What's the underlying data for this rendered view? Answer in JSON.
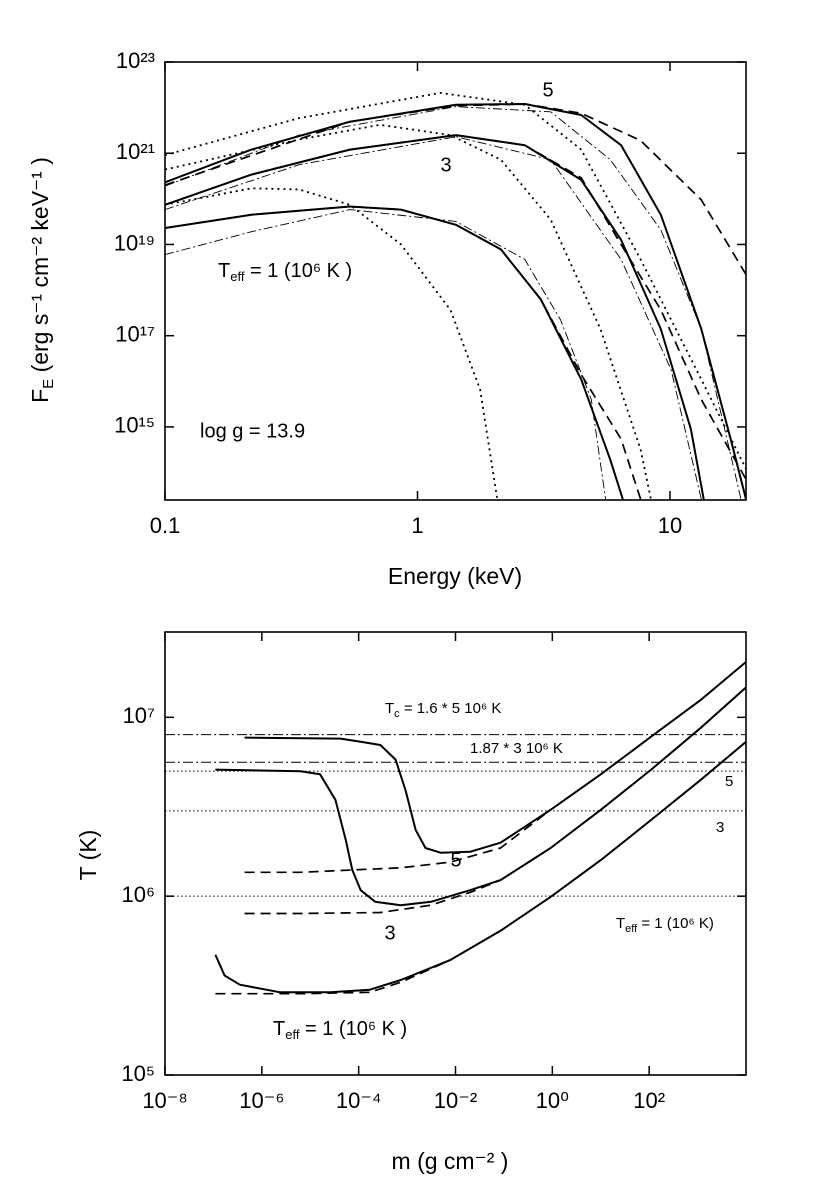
{
  "chart_data": [
    {
      "type": "line",
      "xlog": true,
      "ylog": true,
      "x_label": "Energy (keV)",
      "y_label": [
        "F",
        "E",
        "  (erg s⁻¹ cm⁻² keV⁻¹ )"
      ],
      "annotations": [
        "5",
        "3",
        [
          "T",
          "eff",
          " = 1 (10⁶ K )"
        ],
        "log g = 13.9"
      ],
      "xlim": [
        0.1,
        20
      ],
      "xticks": [
        0.1,
        1,
        10
      ],
      "ylim": [
        25000000000000.0,
        1e+23
      ],
      "yticks": [
        {
          "value": 1000000000000000.0,
          "label": "10¹⁵"
        },
        {
          "value": 1e+17,
          "label": "10¹⁷"
        },
        {
          "value": 1e+19,
          "label": "10¹⁹"
        },
        {
          "value": 1e+21,
          "label": "10²¹"
        },
        {
          "value": 1e+23,
          "label": "10²³"
        }
      ],
      "color": "#000000",
      "series": [
        {
          "style": "solid",
          "x": [
            0.1,
            0.22,
            0.54,
            1.42,
            2.66,
            4.45,
            6.4,
            9.2,
            13.3,
            17.4,
            20
          ],
          "values": [
            2.3e+20,
            1.2e+21,
            4.9e+21,
            1.15e+22,
            1.2e+22,
            6.9e+21,
            1.5e+21,
            4.5e+19,
            1.4e+17,
            540000000000000.0,
            26000000000000.0
          ]
        },
        {
          "style": "dashed",
          "x": [
            0.1,
            0.54,
            1.42,
            2.66,
            4.45,
            7.65,
            13.3,
            20
          ],
          "values": [
            2e+20,
            4.9e+21,
            1.1e+22,
            1.2e+22,
            7.5e+21,
            1.9e+21,
            9.5e+19,
            2.2e+18
          ]
        },
        {
          "style": "dotted",
          "x": [
            0.1,
            0.34,
            1.23,
            2.66,
            4.45,
            7.65,
            13.3,
            20
          ],
          "values": [
            9.1e+20,
            5.9e+21,
            2.1e+22,
            1.15e+22,
            1.2e+21,
            4.7e+18,
            1.1e+16,
            120000000000000.0
          ]
        },
        {
          "style": "dashdot",
          "x": [
            0.1,
            0.34,
            1.42,
            3.37,
            5.8,
            9.2,
            13.3,
            19.1
          ],
          "values": [
            1.9e+20,
            2.5e+21,
            1.05e+22,
            8.1e+21,
            7.2e+20,
            2.1e+19,
            1.4e+17,
            26000000000000.0
          ]
        },
        {
          "style": "solid",
          "x": [
            0.1,
            0.22,
            0.54,
            1.42,
            2.66,
            4.45,
            6.4,
            9.2,
            12.1,
            13.6
          ],
          "values": [
            7.4e+19,
            3.4e+20,
            1.2e+21,
            2.5e+21,
            1.5e+21,
            2.6e+20,
            1.26e+19,
            1.4e+17,
            890000000000000.0,
            26000000000000.0
          ]
        },
        {
          "style": "dashed",
          "x": [
            0.1,
            0.22,
            0.54,
            1.42,
            2.66,
            4.45,
            6.4,
            9.2,
            13.3,
            20
          ],
          "values": [
            7.4e+19,
            3.4e+20,
            1.2e+21,
            2.5e+21,
            1.5e+21,
            2.9e+20,
            1e+19,
            3.7e+17,
            4000000000000000.0,
            71000000000000.0
          ]
        },
        {
          "style": "dotted",
          "x": [
            0.1,
            0.34,
            0.71,
            1.35,
            2.14,
            3.37,
            5.3,
            7.65,
            8.4
          ],
          "values": [
            4.4e+20,
            2e+21,
            4.2e+21,
            2.5e+21,
            7.2e+20,
            3.5e+19,
            1.4e+17,
            320000000000000.0,
            26000000000000.0
          ]
        },
        {
          "style": "dashdot",
          "x": [
            0.1,
            0.34,
            1.42,
            3.37,
            6.4,
            10.1,
            13.3
          ],
          "values": [
            5.8e+19,
            5.6e+20,
            2.3e+21,
            7.2e+20,
            4.7e+18,
            1.8e+16,
            26000000000000.0
          ]
        },
        {
          "style": "solid",
          "x": [
            0.1,
            0.22,
            0.54,
            0.86,
            1.42,
            2.14,
            3.08,
            4.45,
            5.8,
            6.5
          ],
          "values": [
            2.3e+19,
            4.5e+19,
            6.8e+19,
            5.8e+19,
            2.7e+19,
            7.8e+18,
            6.2e+17,
            1.1e+16,
            190000000000000.0,
            26000000000000.0
          ]
        },
        {
          "style": "dashed",
          "x": [
            0.1,
            0.22,
            0.54,
            0.86,
            1.42,
            2.14,
            3.08,
            4.45,
            6.4,
            7.65
          ],
          "values": [
            2.3e+19,
            4.5e+19,
            6.8e+19,
            5.8e+19,
            2.7e+19,
            7.8e+18,
            6.2e+17,
            1.4e+16,
            540000000000000.0,
            26000000000000.0
          ]
        },
        {
          "style": "dotted",
          "x": [
            0.1,
            0.22,
            0.34,
            0.54,
            0.86,
            1.35,
            1.77,
            2.07
          ],
          "values": [
            7.4e+19,
            1.7e+20,
            1.6e+20,
            7.4e+19,
            1e+19,
            3.7e+17,
            6600000000000000.0,
            26000000000000.0
          ]
        },
        {
          "style": "dashdot",
          "x": [
            0.1,
            0.22,
            0.54,
            1.42,
            2.66,
            3.69,
            4.88,
            5.56
          ],
          "values": [
            6e+18,
            1.9e+19,
            5.8e+19,
            3.2e+19,
            4.7e+18,
            2.2e+17,
            4000000000000000.0,
            26000000000000.0
          ]
        }
      ]
    },
    {
      "type": "line",
      "xlog": true,
      "ylog": true,
      "x_label": "m  (g cm⁻² )",
      "y_label": [
        "T (K)"
      ],
      "annotations": [
        [
          "T",
          "c",
          " = 1.6 * 5 10⁶ K"
        ],
        "1.87 * 3 10⁶ K",
        "5",
        "3",
        [
          "T",
          "eff",
          " = 1 (10⁶ K)"
        ],
        "5",
        "3",
        [
          "T",
          "eff",
          " = 1 (10⁶ K )"
        ]
      ],
      "xlim": [
        1e-08,
        10000.0
      ],
      "xticks": [
        {
          "value": 1e-08,
          "label": "10⁻⁸"
        },
        {
          "value": 1e-06,
          "label": "10⁻⁶"
        },
        {
          "value": 0.0001,
          "label": "10⁻⁴"
        },
        {
          "value": 0.01,
          "label": "10⁻²"
        },
        {
          "value": 1,
          "label": "10⁰"
        },
        {
          "value": 100,
          "label": "10²"
        }
      ],
      "ylim": [
        100000.0,
        30000000.0
      ],
      "yticks": [
        {
          "value": 100000.0,
          "label": "10⁵"
        },
        {
          "value": 1000000.0,
          "label": "10⁶"
        },
        {
          "value": 10000000.0,
          "label": "10⁷"
        }
      ],
      "color": "#000000",
      "hlines": [
        {
          "value": 8000000.0,
          "style": "dashdot"
        },
        {
          "value": 5610000.0,
          "style": "dashdot"
        },
        {
          "value": 5000000.0,
          "style": "dotted"
        },
        {
          "value": 3000000.0,
          "style": "dotted"
        },
        {
          "value": 1000000.0,
          "style": "dotted"
        }
      ],
      "series": [
        {
          "style": "solid",
          "x": [
            4.4e-07,
            4.2e-05,
            0.00011,
            0.00028,
            0.00058,
            0.00093,
            0.0015,
            0.0024,
            0.0049,
            0.02,
            0.085,
            0.92,
            10,
            110,
            1200,
            10000.0
          ],
          "values": [
            7700000.0,
            7600000.0,
            7300000.0,
            7000000.0,
            5800000.0,
            3900000.0,
            2350000.0,
            1860000.0,
            1750000.0,
            1770000.0,
            1990000.0,
            3040000.0,
            4800000.0,
            7800000.0,
            12600000.0,
            20400000.0
          ]
        },
        {
          "style": "dashed",
          "x": [
            4.4e-07,
            6.3e-06,
            0.00074,
            0.0079,
            0.085,
            0.92
          ],
          "values": [
            1360000.0,
            1360000.0,
            1440000.0,
            1550000.0,
            1860000.0,
            3040000.0
          ]
        },
        {
          "style": "solid",
          "x": [
            1.1e-07,
            6.3e-06,
            1.6e-05,
            3.3e-05,
            5.4e-05,
            7.4e-05,
            0.00011,
            0.00022,
            0.00074,
            0.0031,
            0.02,
            0.085,
            0.92,
            10,
            110,
            1200,
            10000.0
          ],
          "values": [
            5100000.0,
            5000000.0,
            4800000.0,
            3460000.0,
            2070000.0,
            1400000.0,
            1080000.0,
            930000.0,
            890000.0,
            930000.0,
            1080000.0,
            1230000.0,
            1860000.0,
            3040000.0,
            5100000.0,
            8800000.0,
            14700000.0
          ]
        },
        {
          "style": "dashed",
          "x": [
            4.4e-07,
            6.3e-06,
            0.00028,
            0.0031,
            0.02,
            0.085
          ],
          "values": [
            800000.0,
            800000.0,
            810000.0,
            890000.0,
            1050000.0,
            1230000.0
          ]
        },
        {
          "style": "solid",
          "x": [
            1.1e-07,
            1.7e-07,
            3.5e-07,
            2.4e-06,
            2.6e-05,
            0.00017,
            0.00074,
            0.0079,
            0.085,
            0.92,
            10,
            110,
            1200,
            10000.0
          ],
          "values": [
            470000.0,
            360000.0,
            320000.0,
            290000.0,
            290000.0,
            300000.0,
            340000.0,
            440000.0,
            640000.0,
            990000.0,
            1590000.0,
            2670000.0,
            4500000.0,
            7300000.0
          ]
        },
        {
          "style": "dashed",
          "x": [
            1.1e-07,
            6.3e-06,
            0.00017,
            0.00074,
            0.0079
          ],
          "values": [
            285000.0,
            285000.0,
            290000.0,
            330000.0,
            440000.0
          ]
        }
      ]
    }
  ]
}
